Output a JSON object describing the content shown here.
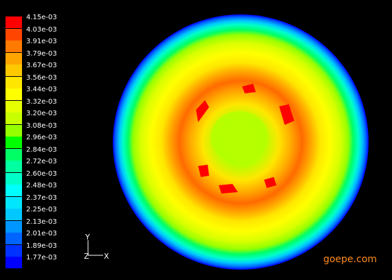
{
  "legend": {
    "labels": [
      "4.15e-03",
      "4.03e-03",
      "3.91e-03",
      "3.79e-03",
      "3.67e-03",
      "3.56e-03",
      "3.44e-03",
      "3.32e-03",
      "3.20e-03",
      "3.08e-03",
      "2.96e-03",
      "2.84e-03",
      "2.72e-03",
      "2.60e-03",
      "2.48e-03",
      "2.37e-03",
      "2.25e-03",
      "2.13e-03",
      "2.01e-03",
      "1.89e-03",
      "1.77e-03"
    ],
    "colors": [
      "#ff0000",
      "#ff4500",
      "#ff7a00",
      "#ffa500",
      "#ffc800",
      "#ffe600",
      "#ffff00",
      "#e6ff00",
      "#c8ff00",
      "#96ff00",
      "#00ff00",
      "#00ff64",
      "#00ffa0",
      "#00ffc8",
      "#00ffff",
      "#00e6ff",
      "#00c8ff",
      "#0096ff",
      "#0064ff",
      "#0032ff",
      "#0000ff"
    ]
  },
  "axis_triad": {
    "y_label": "Y",
    "z_label": "Z",
    "x_label": "X"
  },
  "contour_field": {
    "shape": "circle",
    "min_value": "1.77e-03",
    "max_value": "4.15e-03"
  },
  "watermark": "goepe.com"
}
